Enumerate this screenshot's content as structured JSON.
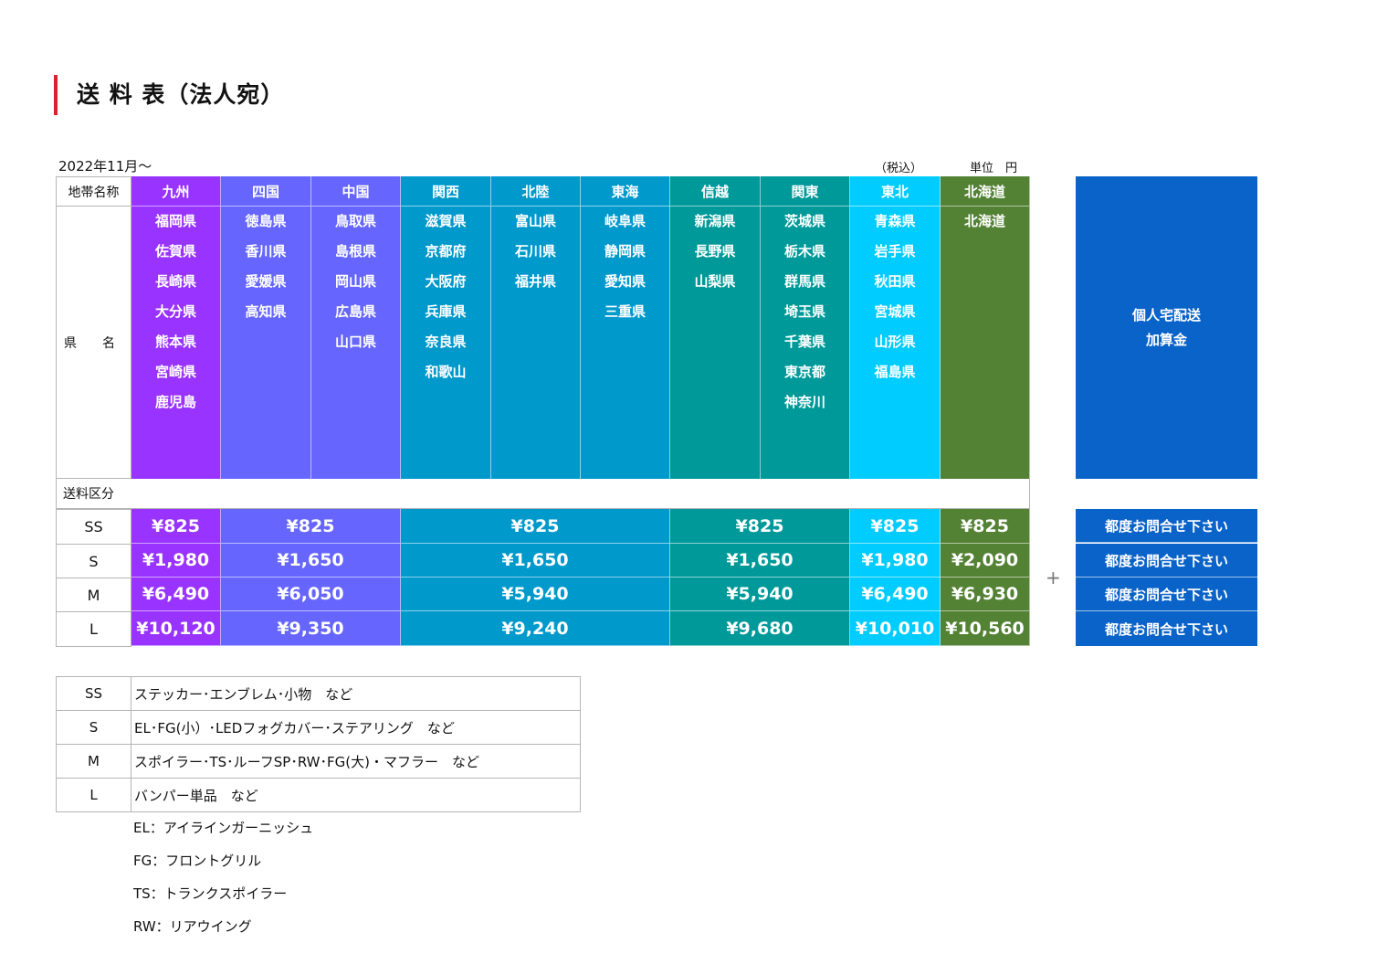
{
  "title": "送 料 表（法人宛）",
  "date_label": "2022年11月～",
  "tax_label": "（税込）",
  "unit_label": "単位　円",
  "table": {
    "region_label": "地帯名称",
    "prefecture_label": "県　　名",
    "category_label": "送料区分",
    "regions": [
      {
        "name": "九州",
        "color": "#9933ff",
        "prefectures": [
          "福岡県",
          "佐賀県",
          "長崎県",
          "大分県",
          "熊本県",
          "宮崎県",
          "鹿児島"
        ]
      },
      {
        "name": "四国",
        "color": "#6666ff",
        "prefectures": [
          "徳島県",
          "香川県",
          "愛媛県",
          "高知県"
        ]
      },
      {
        "name": "中国",
        "color": "#6666ff",
        "prefectures": [
          "鳥取県",
          "島根県",
          "岡山県",
          "広島県",
          "山口県"
        ]
      },
      {
        "name": "関西",
        "color": "#0099cc",
        "prefectures": [
          "滋賀県",
          "京都府",
          "大阪府",
          "兵庫県",
          "奈良県",
          "和歌山"
        ]
      },
      {
        "name": "北陸",
        "color": "#0099cc",
        "prefectures": [
          "富山県",
          "石川県",
          "福井県"
        ]
      },
      {
        "name": "東海",
        "color": "#0099cc",
        "prefectures": [
          "岐阜県",
          "静岡県",
          "愛知県",
          "三重県"
        ]
      },
      {
        "name": "信越",
        "color": "#009999",
        "prefectures": [
          "新潟県",
          "長野県",
          "山梨県"
        ]
      },
      {
        "name": "関東",
        "color": "#009999",
        "prefectures": [
          "茨城県",
          "栃木県",
          "群馬県",
          "埼玉県",
          "千葉県",
          "東京都",
          "神奈川"
        ]
      },
      {
        "name": "東北",
        "color": "#00ccff",
        "prefectures": [
          "青森県",
          "岩手県",
          "秋田県",
          "宮城県",
          "山形県",
          "福島県"
        ]
      },
      {
        "name": "北海道",
        "color": "#548235",
        "prefectures": [
          "北海道"
        ]
      }
    ],
    "sizes": [
      "SS",
      "S",
      "M",
      "L"
    ],
    "price_groups": [
      {
        "color": "#9933ff",
        "prices": [
          "¥825",
          "¥1,980",
          "¥6,490",
          "¥10,120"
        ]
      },
      {
        "color": "#6666ff",
        "prices": [
          "¥825",
          "¥1,650",
          "¥6,050",
          "¥9,350"
        ]
      },
      {
        "color": "#0099cc",
        "prices": [
          "¥825",
          "¥1,650",
          "¥5,940",
          "¥9,240"
        ]
      },
      {
        "color": "#009999",
        "prices": [
          "¥825",
          "¥1,650",
          "¥5,940",
          "¥9,680"
        ]
      },
      {
        "color": "#00ccff",
        "prices": [
          "¥825",
          "¥1,980",
          "¥6,490",
          "¥10,010"
        ]
      },
      {
        "color": "#548235",
        "prices": [
          "¥825",
          "¥2,090",
          "¥6,930",
          "¥10,560"
        ]
      }
    ]
  },
  "individual": {
    "line1": "個人宅配送",
    "line2": "加算金",
    "inquiry": [
      "都度お問合せ下さい",
      "都度お問合せ下さい",
      "都度お問合せ下さい",
      "都度お問合せ下さい"
    ],
    "plus": "+"
  },
  "size_legend": [
    {
      "size": "SS",
      "desc": "ステッカー･エンブレム･小物　など"
    },
    {
      "size": "S",
      "desc": "EL･FG(小）･LEDフォグカバー･ステアリング　など"
    },
    {
      "size": "M",
      "desc": "スポイラー･TS･ルーフSP･RW･FG(大)・マフラー　など"
    },
    {
      "size": "L",
      "desc": "バンパー単品　など"
    }
  ],
  "notes": [
    "EL：アイラインガーニッシュ",
    "FG：フロントグリル",
    "TS：トランクスポイラー",
    "RW：リアウイング"
  ]
}
